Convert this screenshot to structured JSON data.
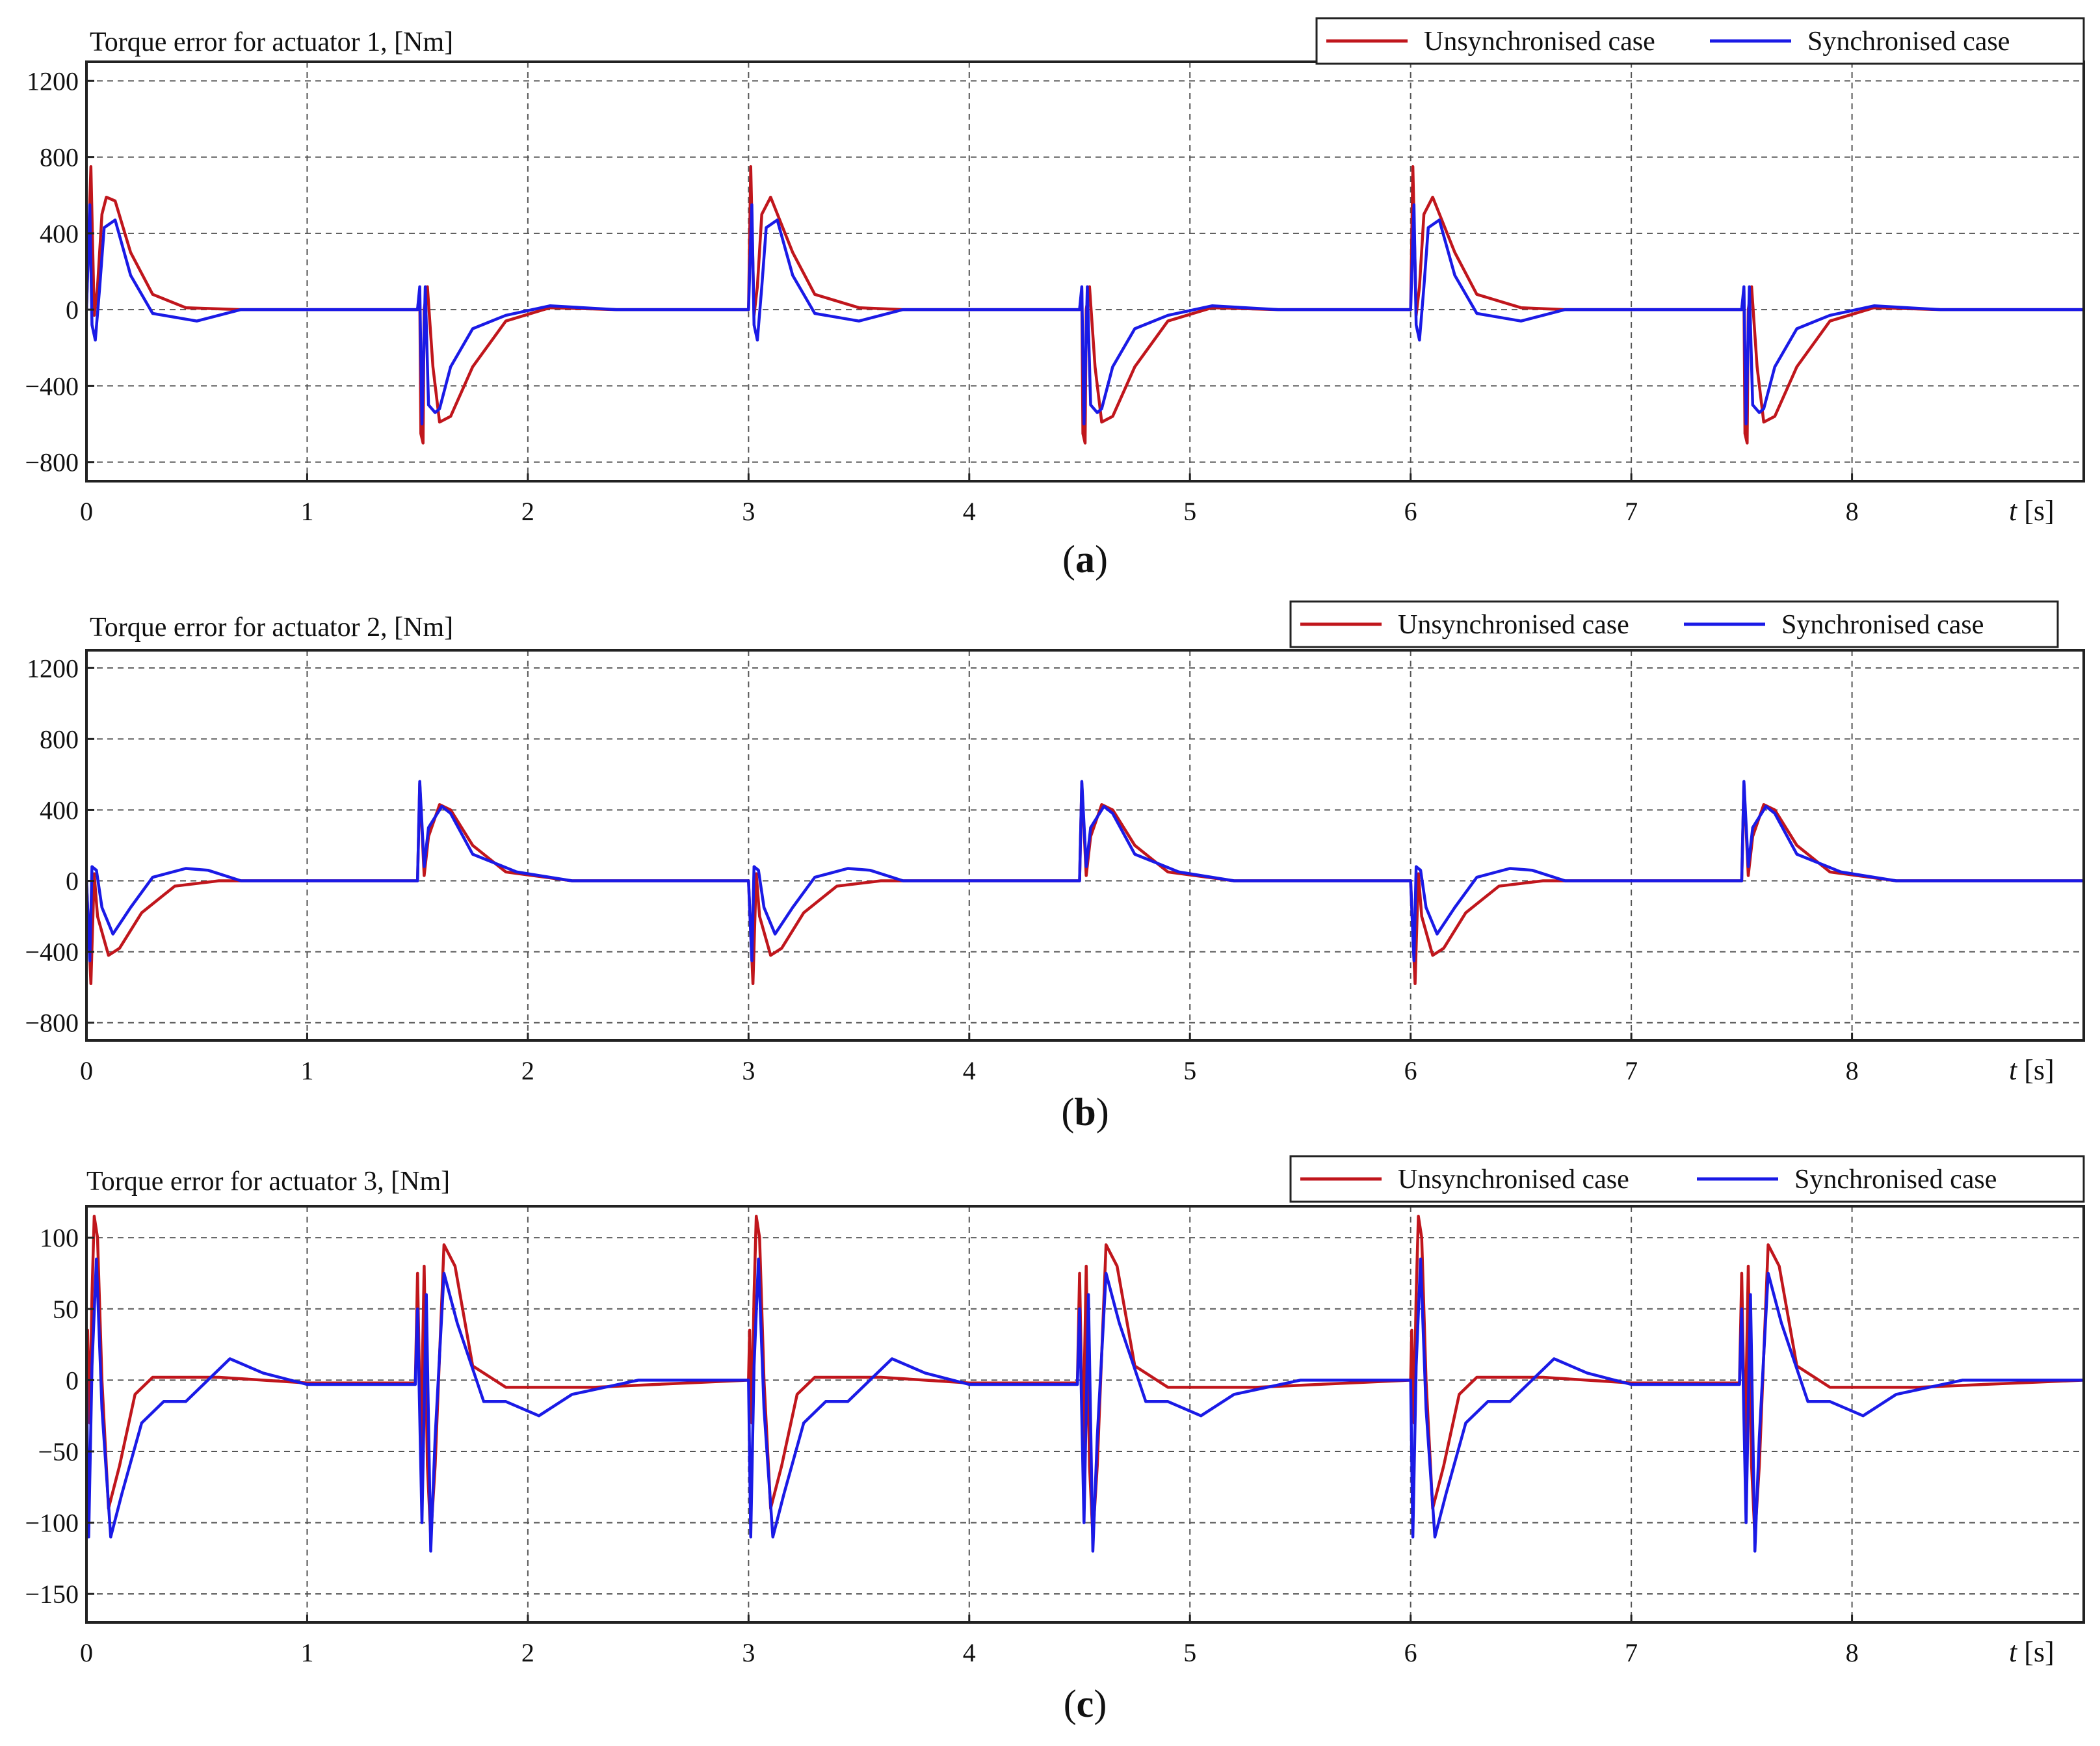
{
  "figure": {
    "colors": {
      "unsync": "#c0161c",
      "sync": "#1a1ae6",
      "grid": "#555555",
      "frame": "#222222"
    }
  },
  "chart_data": [
    {
      "type": "line",
      "title": "Torque error for actuator 1, [Nm]",
      "caption_letter": "a",
      "xlabel_var": "t",
      "xlabel_unit": " [s]",
      "xlim": [
        0,
        9.05
      ],
      "ylim": [
        -900,
        1300
      ],
      "xticks": [
        0,
        1,
        2,
        3,
        4,
        5,
        6,
        7,
        8
      ],
      "yticks": [
        1200,
        800,
        400,
        0,
        -400,
        -800
      ],
      "ytick_labels": [
        "1200",
        "800",
        "400",
        "0",
        "−400",
        "−800"
      ],
      "legend": [
        "Unsynchronised case",
        "Synchronised case"
      ],
      "series": [
        {
          "name": "Unsynchronised case",
          "x": [
            0,
            0.02,
            0.035,
            0.05,
            0.07,
            0.09,
            0.13,
            0.2,
            0.3,
            0.45,
            0.7,
            1.0,
            1.5,
            1.51,
            1.515,
            1.525,
            1.53,
            1.545,
            1.57,
            1.6,
            1.65,
            1.75,
            1.9,
            2.1,
            2.4,
            3.0,
            3.01,
            3.025,
            3.04,
            3.06,
            3.1,
            3.2,
            3.3,
            3.5,
            3.7,
            4.0,
            4.5,
            4.51,
            4.515,
            4.525,
            4.53,
            4.545,
            4.57,
            4.6,
            4.65,
            4.75,
            4.9,
            5.1,
            5.4,
            6.0,
            6.01,
            6.025,
            6.04,
            6.06,
            6.1,
            6.2,
            6.3,
            6.5,
            6.7,
            7.0,
            7.5,
            7.51,
            7.515,
            7.525,
            7.53,
            7.545,
            7.57,
            7.6,
            7.65,
            7.75,
            7.9,
            8.1,
            8.4,
            9.05
          ],
          "y": [
            0,
            750,
            -30,
            120,
            500,
            590,
            570,
            300,
            80,
            10,
            0,
            0,
            0,
            100,
            -650,
            -700,
            0,
            120,
            -300,
            -590,
            -560,
            -300,
            -60,
            10,
            0,
            0,
            750,
            -30,
            120,
            500,
            590,
            300,
            80,
            10,
            0,
            0,
            0,
            100,
            -650,
            -700,
            0,
            120,
            -300,
            -590,
            -560,
            -300,
            -60,
            10,
            0,
            0,
            750,
            -30,
            120,
            500,
            590,
            300,
            80,
            10,
            0,
            0,
            0,
            100,
            -650,
            -700,
            0,
            120,
            -300,
            -590,
            -560,
            -300,
            -60,
            10,
            0,
            0
          ]
        },
        {
          "name": "Synchronised case",
          "x": [
            0,
            0.015,
            0.025,
            0.04,
            0.06,
            0.08,
            0.13,
            0.2,
            0.3,
            0.5,
            0.7,
            1.0,
            1.5,
            1.51,
            1.52,
            1.535,
            1.55,
            1.58,
            1.6,
            1.65,
            1.75,
            1.9,
            2.1,
            2.4,
            3.0,
            3.015,
            3.025,
            3.04,
            3.06,
            3.08,
            3.13,
            3.2,
            3.3,
            3.5,
            3.7,
            4.0,
            4.5,
            4.51,
            4.52,
            4.535,
            4.55,
            4.58,
            4.6,
            4.65,
            4.75,
            4.9,
            5.1,
            5.4,
            6.0,
            6.015,
            6.025,
            6.04,
            6.06,
            6.08,
            6.13,
            6.2,
            6.3,
            6.5,
            6.7,
            7.0,
            7.5,
            7.51,
            7.52,
            7.535,
            7.55,
            7.58,
            7.6,
            7.65,
            7.75,
            7.9,
            8.1,
            8.4,
            9.05
          ],
          "y": [
            0,
            550,
            -80,
            -160,
            120,
            430,
            470,
            180,
            -20,
            -60,
            0,
            0,
            0,
            120,
            -600,
            120,
            -500,
            -540,
            -520,
            -300,
            -100,
            -30,
            20,
            0,
            0,
            550,
            -80,
            -160,
            120,
            430,
            470,
            180,
            -20,
            -60,
            0,
            0,
            0,
            120,
            -600,
            120,
            -500,
            -540,
            -520,
            -300,
            -100,
            -30,
            20,
            0,
            0,
            550,
            -80,
            -160,
            120,
            430,
            470,
            180,
            -20,
            -60,
            0,
            0,
            0,
            120,
            -600,
            120,
            -500,
            -540,
            -520,
            -300,
            -100,
            -30,
            20,
            0,
            0
          ]
        }
      ]
    },
    {
      "type": "line",
      "title": "Torque error for actuator 2, [Nm]",
      "caption_letter": "b",
      "xlabel_var": "t",
      "xlabel_unit": " [s]",
      "xlim": [
        0,
        9.05
      ],
      "ylim": [
        -900,
        1300
      ],
      "xticks": [
        0,
        1,
        2,
        3,
        4,
        5,
        6,
        7,
        8
      ],
      "yticks": [
        1200,
        800,
        400,
        0,
        -400,
        -800
      ],
      "ytick_labels": [
        "1200",
        "800",
        "400",
        "0",
        "−400",
        "−800"
      ],
      "legend": [
        "Unsynchronised case",
        "Synchronised case"
      ],
      "series": [
        {
          "name": "Unsynchronised case",
          "x": [
            0,
            0.02,
            0.035,
            0.05,
            0.1,
            0.15,
            0.25,
            0.4,
            0.6,
            1.0,
            1.5,
            1.51,
            1.53,
            1.55,
            1.6,
            1.65,
            1.75,
            1.9,
            2.2,
            3.0,
            3.02,
            3.035,
            3.05,
            3.1,
            3.15,
            3.25,
            3.4,
            3.6,
            4.0,
            4.5,
            4.51,
            4.53,
            4.55,
            4.6,
            4.65,
            4.75,
            4.9,
            5.2,
            6.0,
            6.02,
            6.035,
            6.05,
            6.1,
            6.15,
            6.25,
            6.4,
            6.6,
            7.0,
            7.5,
            7.51,
            7.53,
            7.55,
            7.6,
            7.65,
            7.75,
            7.9,
            8.2,
            9.05
          ],
          "y": [
            0,
            -580,
            40,
            -200,
            -420,
            -380,
            -180,
            -30,
            0,
            0,
            0,
            550,
            30,
            250,
            430,
            400,
            200,
            50,
            0,
            0,
            -580,
            40,
            -200,
            -420,
            -380,
            -180,
            -30,
            0,
            0,
            0,
            550,
            30,
            250,
            430,
            400,
            200,
            50,
            0,
            0,
            -580,
            40,
            -200,
            -420,
            -380,
            -180,
            -30,
            0,
            0,
            0,
            550,
            30,
            250,
            430,
            400,
            200,
            50,
            0,
            0
          ]
        },
        {
          "name": "Synchronised case",
          "x": [
            0,
            0.015,
            0.025,
            0.045,
            0.07,
            0.12,
            0.2,
            0.3,
            0.45,
            0.55,
            0.7,
            1.0,
            1.5,
            1.51,
            1.53,
            1.55,
            1.61,
            1.65,
            1.75,
            1.95,
            2.05,
            2.2,
            3.0,
            3.015,
            3.025,
            3.045,
            3.07,
            3.12,
            3.2,
            3.3,
            3.45,
            3.55,
            3.7,
            4.0,
            4.5,
            4.51,
            4.53,
            4.55,
            4.61,
            4.65,
            4.75,
            4.95,
            5.05,
            5.2,
            6.0,
            6.015,
            6.025,
            6.045,
            6.07,
            6.12,
            6.2,
            6.3,
            6.45,
            6.55,
            6.7,
            7.0,
            7.5,
            7.51,
            7.53,
            7.55,
            7.61,
            7.65,
            7.75,
            7.95,
            8.05,
            8.2,
            9.05
          ],
          "y": [
            0,
            -450,
            80,
            60,
            -150,
            -300,
            -150,
            20,
            70,
            60,
            0,
            0,
            0,
            560,
            80,
            300,
            420,
            380,
            150,
            50,
            30,
            0,
            0,
            -450,
            80,
            60,
            -150,
            -300,
            -150,
            20,
            70,
            60,
            0,
            0,
            0,
            560,
            80,
            300,
            420,
            380,
            150,
            50,
            30,
            0,
            0,
            -450,
            80,
            60,
            -150,
            -300,
            -150,
            20,
            70,
            60,
            0,
            0,
            0,
            560,
            80,
            300,
            420,
            380,
            150,
            50,
            30,
            0,
            0
          ]
        }
      ]
    },
    {
      "type": "line",
      "title": "Torque error for actuator 3, [Nm]",
      "caption_letter": "c",
      "xlabel_var": "t",
      "xlabel_unit": " [s]",
      "xlim": [
        0,
        9.05
      ],
      "ylim": [
        -170,
        122
      ],
      "xticks": [
        0,
        1,
        2,
        3,
        4,
        5,
        6,
        7,
        8
      ],
      "yticks": [
        100,
        50,
        0,
        -50,
        -100,
        -150
      ],
      "ytick_labels": [
        "100",
        "50",
        "0",
        "−50",
        "−100",
        "−150"
      ],
      "legend": [
        "Unsynchronised case",
        "Synchronised case"
      ],
      "series": [
        {
          "name": "Unsynchronised case",
          "x": [
            0,
            0.005,
            0.015,
            0.025,
            0.035,
            0.05,
            0.07,
            0.1,
            0.15,
            0.22,
            0.3,
            0.6,
            1.0,
            1.49,
            1.5,
            1.515,
            1.53,
            1.545,
            1.56,
            1.58,
            1.62,
            1.67,
            1.75,
            1.9,
            2.3,
            3.0,
            3.005,
            3.015,
            3.025,
            3.035,
            3.05,
            3.07,
            3.1,
            3.15,
            3.22,
            3.3,
            3.6,
            4.0,
            4.49,
            4.5,
            4.515,
            4.53,
            4.545,
            4.56,
            4.58,
            4.62,
            4.67,
            4.75,
            4.9,
            5.3,
            6.0,
            6.005,
            6.015,
            6.025,
            6.035,
            6.05,
            6.07,
            6.1,
            6.15,
            6.22,
            6.3,
            6.6,
            7.0,
            7.49,
            7.5,
            7.515,
            7.53,
            7.545,
            7.56,
            7.58,
            7.62,
            7.67,
            7.75,
            7.9,
            8.3,
            9.05
          ],
          "y": [
            0,
            35,
            -30,
            60,
            115,
            100,
            0,
            -90,
            -60,
            -10,
            2,
            2,
            -2,
            -2,
            75,
            -50,
            80,
            -60,
            -110,
            -60,
            95,
            80,
            10,
            -5,
            -5,
            0,
            35,
            -30,
            60,
            115,
            100,
            0,
            -90,
            -60,
            -10,
            2,
            2,
            -2,
            -2,
            75,
            -50,
            80,
            -60,
            -110,
            -60,
            95,
            80,
            10,
            -5,
            -5,
            0,
            35,
            -30,
            60,
            115,
            100,
            0,
            -90,
            -60,
            -10,
            2,
            2,
            -2,
            -2,
            75,
            -50,
            80,
            -60,
            -110,
            -60,
            95,
            80,
            10,
            -5,
            -5,
            0
          ]
        },
        {
          "name": "Synchronised case",
          "x": [
            0,
            0.01,
            0.025,
            0.045,
            0.07,
            0.11,
            0.16,
            0.25,
            0.35,
            0.45,
            0.55,
            0.65,
            0.8,
            1.0,
            1.49,
            1.5,
            1.52,
            1.54,
            1.56,
            1.58,
            1.62,
            1.68,
            1.8,
            1.9,
            2.05,
            2.2,
            2.5,
            3.0,
            3.01,
            3.025,
            3.045,
            3.07,
            3.11,
            3.16,
            3.25,
            3.35,
            3.45,
            3.55,
            3.65,
            3.8,
            4.0,
            4.49,
            4.5,
            4.52,
            4.54,
            4.56,
            4.58,
            4.62,
            4.68,
            4.8,
            4.9,
            5.05,
            5.2,
            5.5,
            6.0,
            6.01,
            6.025,
            6.045,
            6.07,
            6.11,
            6.16,
            6.25,
            6.35,
            6.45,
            6.55,
            6.65,
            6.8,
            7.0,
            7.49,
            7.5,
            7.52,
            7.54,
            7.56,
            7.58,
            7.62,
            7.68,
            7.8,
            7.9,
            8.05,
            8.2,
            8.5,
            9.05
          ],
          "y": [
            0,
            -110,
            10,
            85,
            -20,
            -110,
            -80,
            -30,
            -15,
            -15,
            0,
            15,
            5,
            -3,
            -3,
            50,
            -100,
            60,
            -120,
            -40,
            75,
            40,
            -15,
            -15,
            -25,
            -10,
            0,
            0,
            -110,
            10,
            85,
            -20,
            -110,
            -80,
            -30,
            -15,
            -15,
            0,
            15,
            5,
            -3,
            -3,
            50,
            -100,
            60,
            -120,
            -40,
            75,
            40,
            -15,
            -15,
            -25,
            -10,
            0,
            0,
            -110,
            10,
            85,
            -20,
            -110,
            -80,
            -30,
            -15,
            -15,
            0,
            15,
            5,
            -3,
            -3,
            50,
            -100,
            60,
            -120,
            -40,
            75,
            40,
            -15,
            -15,
            -25,
            -10,
            0,
            0
          ]
        }
      ]
    }
  ]
}
